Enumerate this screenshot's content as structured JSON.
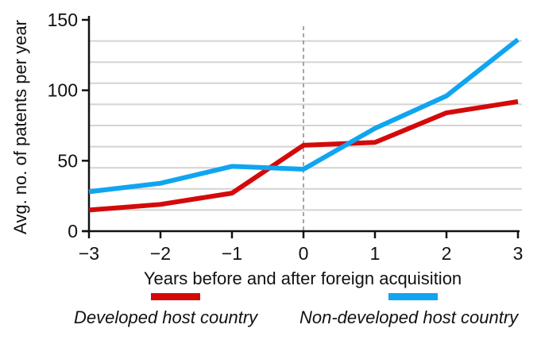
{
  "chart_data": {
    "type": "line",
    "title": "",
    "xlabel": "Years before and after foreign acquisition",
    "ylabel": "Avg. no. of patents per year",
    "x": [
      -3,
      -2,
      -1,
      0,
      1,
      2,
      3
    ],
    "x_tick_labels": [
      "−3",
      "−2",
      "−1",
      "0",
      "1",
      "2",
      "3"
    ],
    "y_ticks": [
      0,
      50,
      100,
      150
    ],
    "y_tick_labels": [
      "0",
      "50",
      "100",
      "150"
    ],
    "xlim": [
      -3,
      3
    ],
    "ylim": [
      0,
      150
    ],
    "gridlines_y": [
      15,
      30,
      45,
      60,
      75,
      90,
      105,
      120,
      135
    ],
    "vertical_reference_x": 0,
    "legend_placement": "bottom",
    "series": [
      {
        "name": "Developed host country",
        "color": "#d40a0a",
        "values": [
          15,
          19,
          27,
          61,
          63,
          84,
          92
        ]
      },
      {
        "name": "Non-developed host country",
        "color": "#0fa5f0",
        "values": [
          28,
          34,
          46,
          44,
          73,
          96,
          136
        ]
      }
    ]
  }
}
